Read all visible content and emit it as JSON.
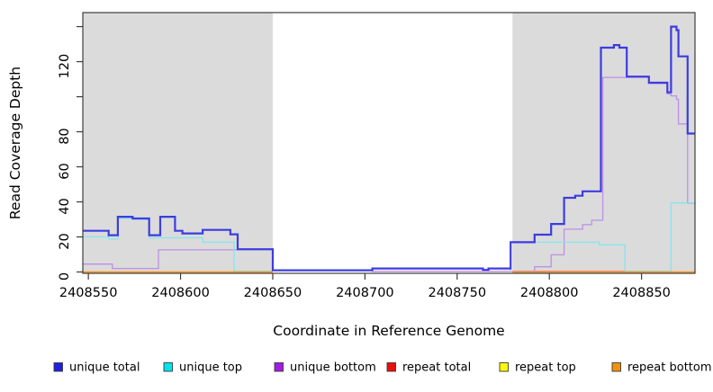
{
  "figure": {
    "xlabel": "Coordinate in Reference Genome",
    "ylabel": "Read Coverage Depth"
  },
  "chart_data": {
    "type": "line",
    "step": "after",
    "title": "",
    "xlabel": "Coordinate in Reference Genome",
    "ylabel": "Read Coverage Depth",
    "xlim": [
      2408547,
      2408879
    ],
    "ylim": [
      0,
      148
    ],
    "x_ticks": [
      2408550,
      2408600,
      2408650,
      2408700,
      2408750,
      2408800,
      2408850
    ],
    "y_ticks_labeled": [
      0,
      20,
      40,
      60,
      80,
      120
    ],
    "y_ticks_unlabeled": [
      100,
      140
    ],
    "grid": false,
    "plot_bg": "#ffffff",
    "shaded_regions": [
      {
        "from": 2408547,
        "to": 2408650,
        "color": "#dbdbdb"
      },
      {
        "from": 2408780,
        "to": 2408879,
        "color": "#dbdbdb"
      }
    ],
    "series": [
      {
        "name": "repeat total",
        "color": "#e87d93",
        "width": 1.3,
        "segments": [
          [
            [
              2408704,
              0.35
            ],
            [
              2408866,
              0.35
            ]
          ]
        ]
      },
      {
        "name": "unique bottom",
        "color": "#bd90e8",
        "width": 1.3,
        "segments": [
          [
            [
              2408547,
              4.5
            ],
            [
              2408563,
              2
            ],
            [
              2408588,
              12.6
            ],
            [
              2408650,
              0.8
            ],
            [
              2408704,
              0.3
            ],
            [
              2408792,
              3
            ],
            [
              2408801,
              9.8
            ],
            [
              2408808,
              24.4
            ],
            [
              2408818,
              27
            ],
            [
              2408823,
              29.5
            ],
            [
              2408829,
              111
            ],
            [
              2408854,
              107.5
            ],
            [
              2408864,
              101.5
            ],
            [
              2408866,
              100.5
            ],
            [
              2408869,
              98.5
            ],
            [
              2408870,
              84.5
            ],
            [
              2408875,
              39.2
            ],
            [
              2408879,
              39.2
            ]
          ]
        ]
      },
      {
        "name": "unique top",
        "color": "#82e6ef",
        "width": 1.3,
        "segments": [
          [
            [
              2408547,
              20
            ],
            [
              2408561,
              18.8
            ],
            [
              2408566,
              30.7
            ],
            [
              2408574,
              30
            ],
            [
              2408583,
              19.5
            ],
            [
              2408612,
              17
            ],
            [
              2408629,
              0.4
            ],
            [
              2408650,
              0.4
            ]
          ],
          [
            [
              2408779,
              0.4
            ],
            [
              2408779,
              17
            ],
            [
              2408827,
              15.5
            ],
            [
              2408841,
              0.4
            ],
            [
              2408866,
              39.4
            ],
            [
              2408879,
              39.4
            ]
          ]
        ]
      },
      {
        "name": "repeat bottom",
        "color": "#ff9114",
        "width": 1.6,
        "segments": [
          [
            [
              2408547,
              0
            ],
            [
              2408650,
              0
            ]
          ],
          [
            [
              2408780,
              0
            ],
            [
              2408879,
              0
            ]
          ]
        ]
      },
      {
        "name": "repeat top",
        "color": "#fbfb00",
        "width": 1.3,
        "segments": []
      },
      {
        "name": "unique total",
        "color": "#3c3ce0",
        "width": 2.2,
        "segments": [
          [
            [
              2408547,
              23.5
            ],
            [
              2408561,
              21
            ],
            [
              2408566,
              31.5
            ],
            [
              2408574,
              30.5
            ],
            [
              2408583,
              21
            ],
            [
              2408589,
              31.5
            ],
            [
              2408597,
              23.5
            ],
            [
              2408601,
              22
            ],
            [
              2408612,
              24
            ],
            [
              2408627,
              21.5
            ],
            [
              2408631,
              13
            ],
            [
              2408650,
              1
            ],
            [
              2408704,
              2
            ],
            [
              2408764,
              1.2
            ],
            [
              2408767,
              2
            ],
            [
              2408779,
              17
            ],
            [
              2408792,
              21.3
            ],
            [
              2408801,
              27.4
            ],
            [
              2408808,
              42.3
            ],
            [
              2408814,
              43.5
            ],
            [
              2408818,
              46
            ],
            [
              2408828,
              128
            ],
            [
              2408835,
              129.5
            ],
            [
              2408838,
              128
            ],
            [
              2408842,
              111.5
            ],
            [
              2408854,
              108
            ],
            [
              2408864,
              102.5
            ],
            [
              2408866,
              140
            ],
            [
              2408869,
              138
            ],
            [
              2408870,
              123
            ],
            [
              2408875,
              79
            ],
            [
              2408879,
              79
            ]
          ]
        ]
      }
    ],
    "legend_position": "bottom",
    "legend": [
      {
        "label": "unique total",
        "color": "#1f1fe6"
      },
      {
        "label": "unique top",
        "color": "#00e4ef"
      },
      {
        "label": "unique bottom",
        "color": "#a01ee0"
      },
      {
        "label": "repeat total",
        "color": "#ea0f0f"
      },
      {
        "label": "repeat top",
        "color": "#fbfb00"
      },
      {
        "label": "repeat bottom",
        "color": "#f0920c"
      }
    ]
  }
}
